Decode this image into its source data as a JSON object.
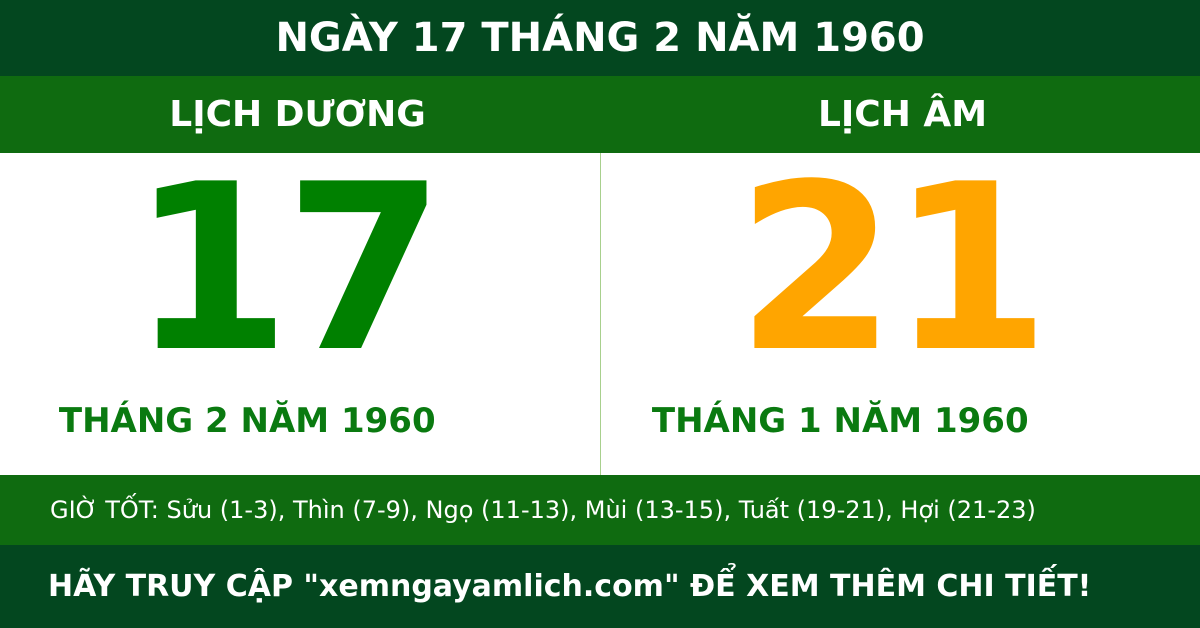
{
  "title": "NGÀY 17 THÁNG 2 NĂM 1960",
  "solar": {
    "heading": "LỊCH DƯƠNG",
    "day": "17",
    "month_year": "THÁNG 2 NĂM 1960"
  },
  "lunar": {
    "heading": "LỊCH ÂM",
    "day": "21",
    "month_year": "THÁNG 1 NĂM 1960"
  },
  "good_hours": "GIỜ TỐT: Sửu (1-3), Thìn (7-9), Ngọ (11-13), Mùi (13-15), Tuất (19-21), Hợi (21-23)",
  "footer": "HÃY TRUY CẬP \"xemngayamlich.com\" ĐỂ XEM THÊM CHI TIẾT!",
  "colors": {
    "dark_green": "#03471f",
    "green": "#0f6b10",
    "solar_day": "#008000",
    "lunar_day": "#ffa500"
  }
}
